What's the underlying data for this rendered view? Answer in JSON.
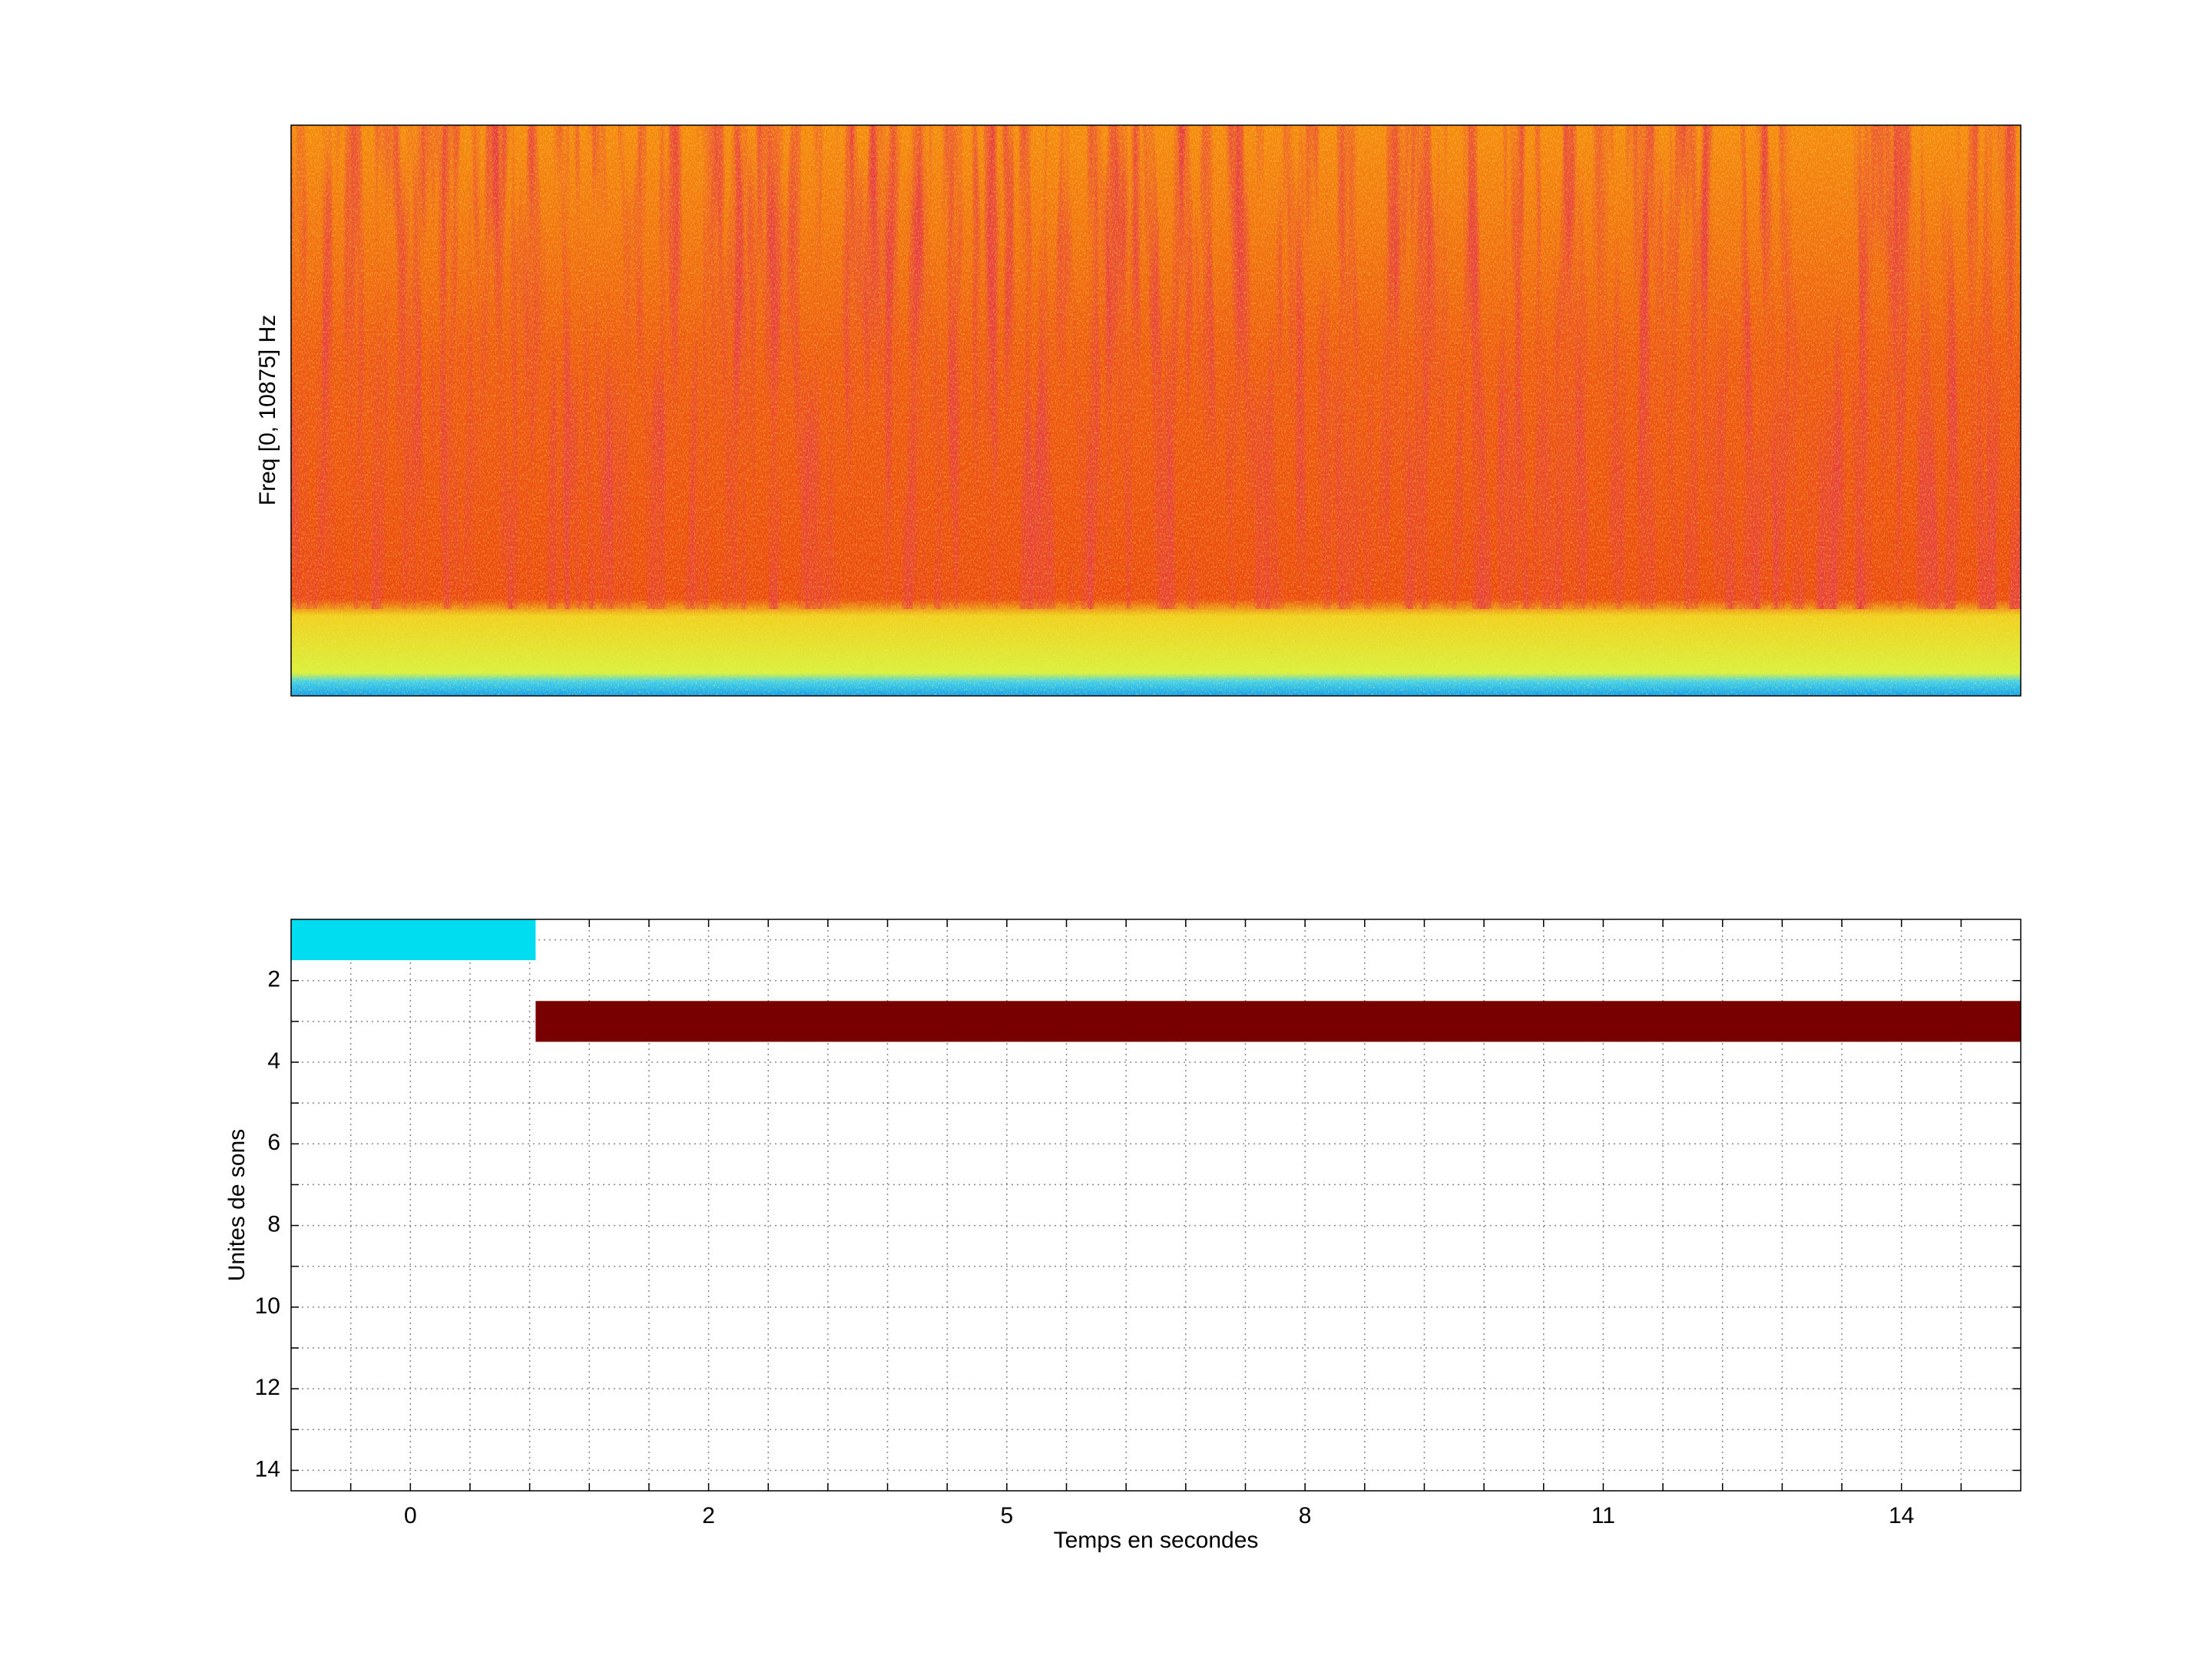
{
  "chart_data": [
    {
      "type": "spectrogram",
      "ylabel": "Freq [0, 10875] Hz"
    },
    {
      "type": "timeline",
      "xlabel": "Temps en secondes",
      "ylabel": "Unites de sons",
      "xlim": [
        3,
        32
      ],
      "ylim": [
        0.5,
        14.5
      ],
      "y_reversed": true,
      "grid": true,
      "xticks": [
        {
          "value": 5,
          "label": "0"
        },
        {
          "value": 10,
          "label": "2"
        },
        {
          "value": 15,
          "label": "5"
        },
        {
          "value": 20,
          "label": "8"
        },
        {
          "value": 25,
          "label": "11"
        },
        {
          "value": 30,
          "label": "14"
        }
      ],
      "yticks": [
        2,
        4,
        6,
        8,
        10,
        12,
        14
      ],
      "xminor": [
        4,
        6,
        7,
        8,
        9,
        11,
        12,
        13,
        14,
        16,
        17,
        18,
        19,
        21,
        22,
        23,
        24,
        26,
        27,
        28,
        29,
        31
      ],
      "yminor": [
        1,
        3,
        5,
        7,
        9,
        11,
        13
      ],
      "segments": [
        {
          "row": 1,
          "start": 3,
          "end": 7.1,
          "color": "#00dcf0"
        },
        {
          "row": 3,
          "start": 7.1,
          "end": 32,
          "color": "#780000"
        }
      ]
    }
  ]
}
